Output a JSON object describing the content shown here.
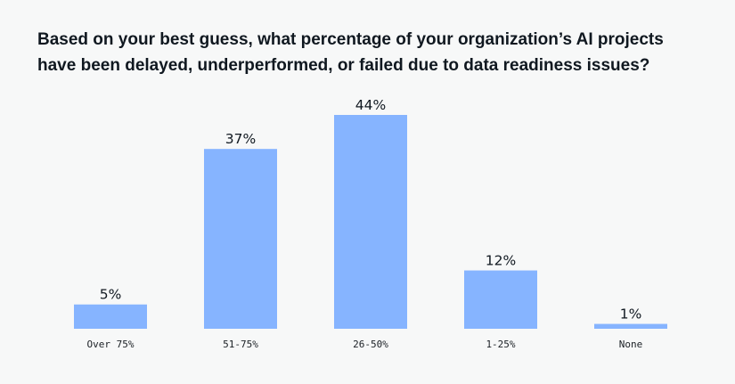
{
  "chart_data": {
    "type": "bar",
    "title_lines": [
      "Based on your best guess, what percentage of your organization’s AI projects",
      "have been delayed, underperformed, or failed due to data readiness issues?"
    ],
    "categories": [
      "Over 75%",
      "51-75%",
      "26-50%",
      "1-25%",
      "None"
    ],
    "values": [
      5,
      37,
      44,
      12,
      1
    ],
    "value_labels": [
      "5%",
      "37%",
      "44%",
      "12%",
      "1%"
    ],
    "xlabel": "",
    "ylabel": "",
    "ylim": [
      0,
      44
    ],
    "grid": false,
    "bar_color": "#86b4ff"
  }
}
